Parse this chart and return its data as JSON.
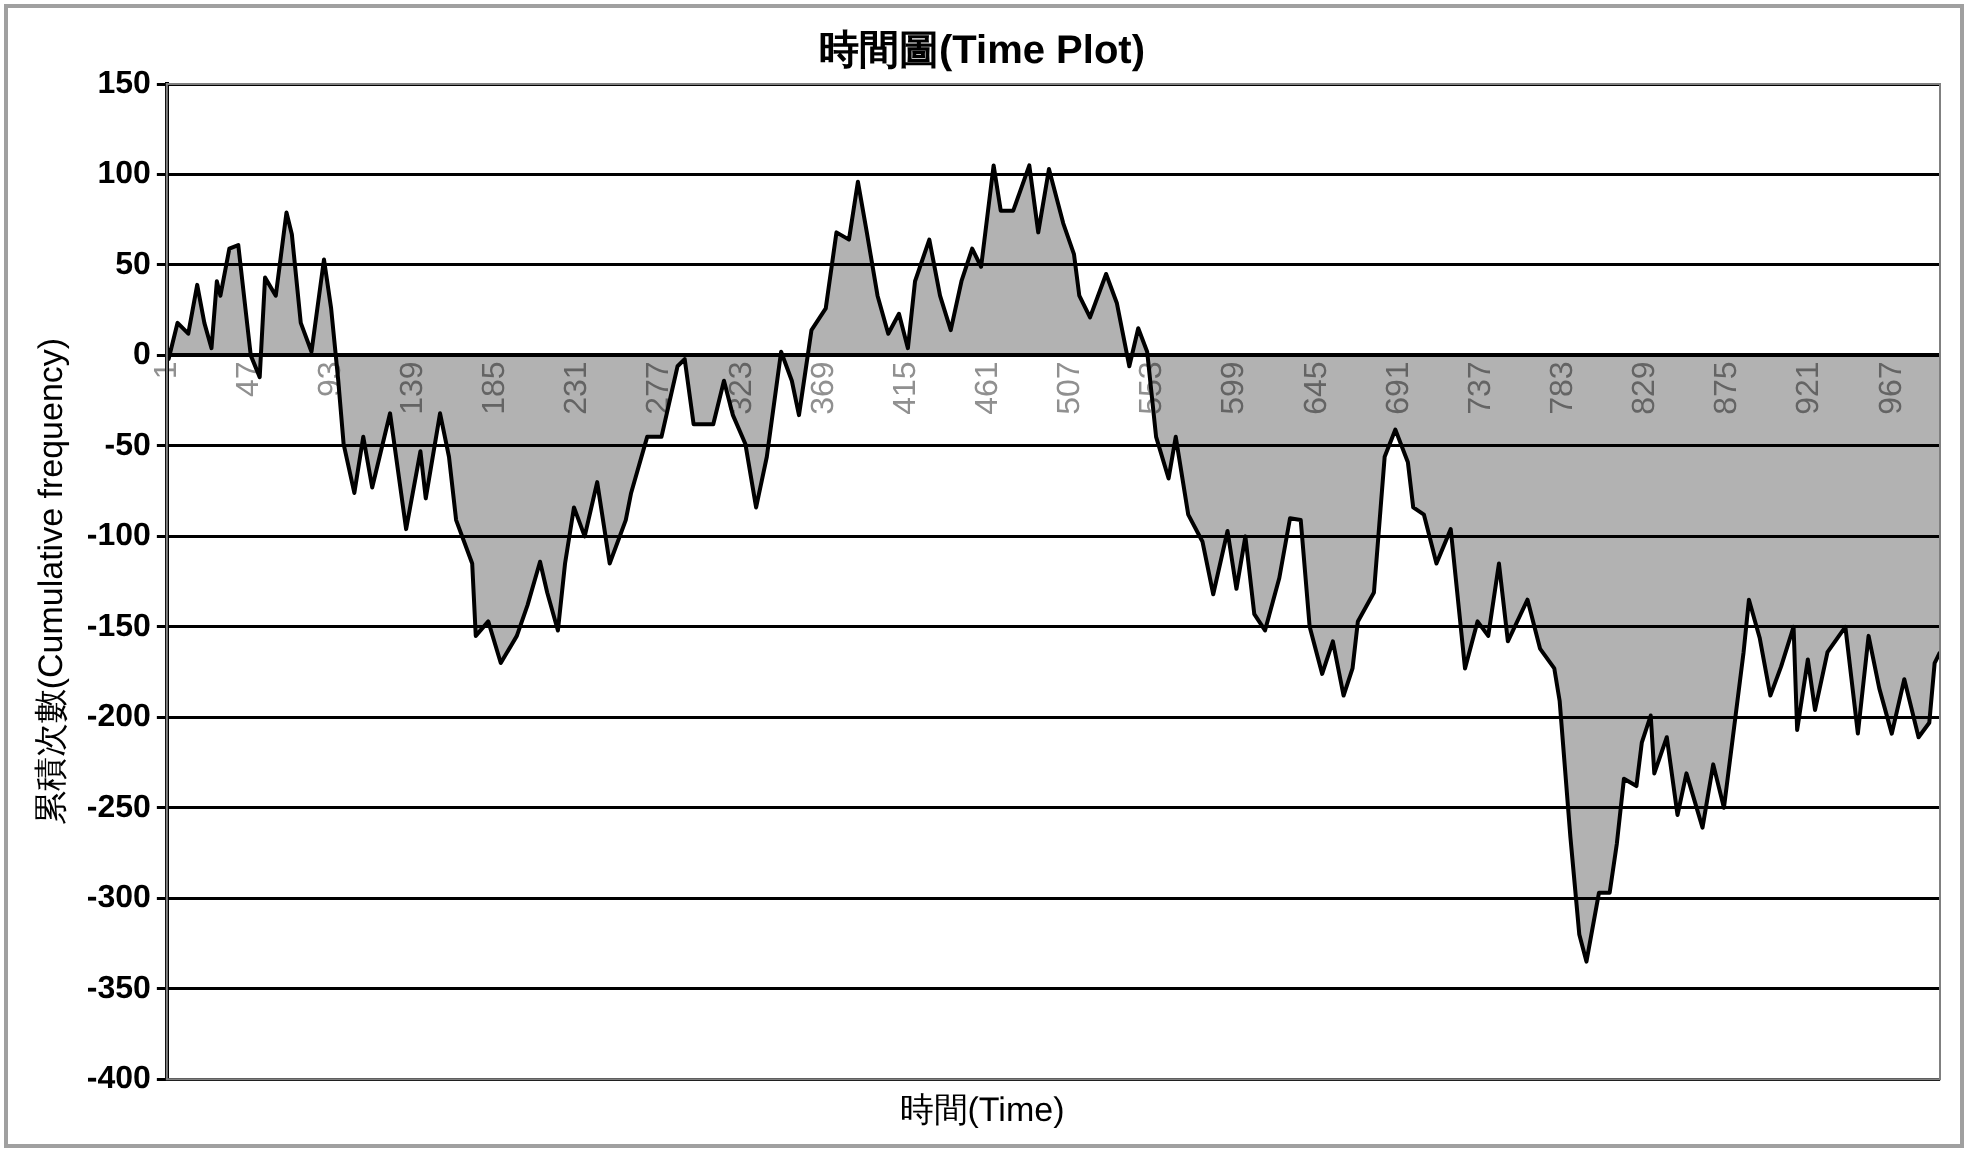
{
  "chart_data": {
    "type": "area",
    "title": "時間圖(Time Plot)",
    "xlabel": "時間(Time)",
    "ylabel": "累積次數(Cumulative frequency)",
    "xlim": [
      1,
      994
    ],
    "xticks": [
      1,
      47,
      93,
      139,
      185,
      231,
      277,
      323,
      369,
      415,
      461,
      507,
      553,
      599,
      645,
      691,
      737,
      783,
      829,
      875,
      921,
      967
    ],
    "ylim": [
      -400,
      150
    ],
    "yticks": [
      -400,
      -350,
      -300,
      -250,
      -200,
      -150,
      -100,
      -50,
      0,
      50,
      100,
      150
    ],
    "grid": "y",
    "legend": false,
    "series": [
      {
        "color": "#000000",
        "x": [
          1,
          2,
          7,
          13,
          18,
          22,
          26,
          29,
          31,
          36,
          41,
          45,
          48,
          53,
          56,
          62,
          68,
          71,
          76,
          82,
          89,
          93,
          97,
          100,
          106,
          111,
          116,
          126,
          135,
          143,
          146,
          154,
          159,
          163,
          172,
          174,
          181,
          188,
          197,
          203,
          210,
          214,
          220,
          224,
          229,
          235,
          242,
          249,
          258,
          261,
          270,
          278,
          287,
          291,
          296,
          307,
          313,
          318,
          325,
          331,
          337,
          345,
          351,
          355,
          362,
          370,
          376,
          383,
          388,
          393,
          399,
          405,
          411,
          416,
          420,
          428,
          434,
          440,
          446,
          452,
          457,
          464,
          468,
          475,
          484,
          489,
          495,
          503,
          509,
          512,
          518,
          527,
          533,
          540,
          545,
          550,
          555,
          562,
          566,
          573,
          581,
          587,
          595,
          600,
          605,
          610,
          616,
          624,
          630,
          636,
          641,
          648,
          654,
          660,
          665,
          668,
          677,
          683,
          689,
          696,
          699,
          705,
          712,
          720,
          728,
          735,
          741,
          747,
          752,
          763,
          770,
          778,
          781,
          787,
          792,
          796,
          803,
          809,
          813,
          817,
          824,
          827,
          832,
          834,
          841,
          847,
          852,
          861,
          867,
          873,
          878,
          884,
          887,
          893,
          899,
          905,
          912,
          914,
          920,
          924,
          931,
          941,
          948,
          954,
          960,
          967,
          974,
          982,
          988,
          991,
          994
        ],
        "values": [
          5,
          -2,
          18,
          12,
          39,
          18,
          4,
          41,
          33,
          59,
          61,
          26,
          0,
          -12,
          43,
          33,
          79,
          67,
          18,
          2,
          53,
          26,
          -14,
          -49,
          -76,
          -45,
          -73,
          -32,
          -96,
          -53,
          -79,
          -32,
          -56,
          -91,
          -115,
          -155,
          -147,
          -170,
          -155,
          -138,
          -114,
          -131,
          -152,
          -115,
          -84,
          -100,
          -70,
          -115,
          -91,
          -76,
          -45,
          -45,
          -6,
          -2,
          -38,
          -38,
          -14,
          -33,
          -49,
          -84,
          -56,
          2,
          -14,
          -33,
          14,
          26,
          68,
          64,
          96,
          68,
          33,
          12,
          23,
          4,
          41,
          64,
          33,
          14,
          41,
          59,
          49,
          105,
          80,
          80,
          105,
          68,
          103,
          73,
          56,
          33,
          21,
          45,
          29,
          -6,
          15,
          2,
          -45,
          -68,
          -45,
          -88,
          -103,
          -132,
          -97,
          -129,
          -100,
          -143,
          -152,
          -123,
          -90,
          -91,
          -150,
          -176,
          -158,
          -188,
          -173,
          -147,
          -131,
          -56,
          -41,
          -59,
          -84,
          -88,
          -115,
          -96,
          -173,
          -147,
          -155,
          -115,
          -158,
          -135,
          -162,
          -173,
          -191,
          -266,
          -320,
          -335,
          -297,
          -297,
          -270,
          -234,
          -238,
          -214,
          -199,
          -231,
          -211,
          -254,
          -231,
          -261,
          -226,
          -250,
          -211,
          -164,
          -135,
          -156,
          -188,
          -172,
          -150,
          -207,
          -168,
          -196,
          -164,
          -150,
          -209,
          -155,
          -184,
          -209,
          -179,
          -211,
          -203,
          -170,
          -164
        ]
      }
    ]
  }
}
